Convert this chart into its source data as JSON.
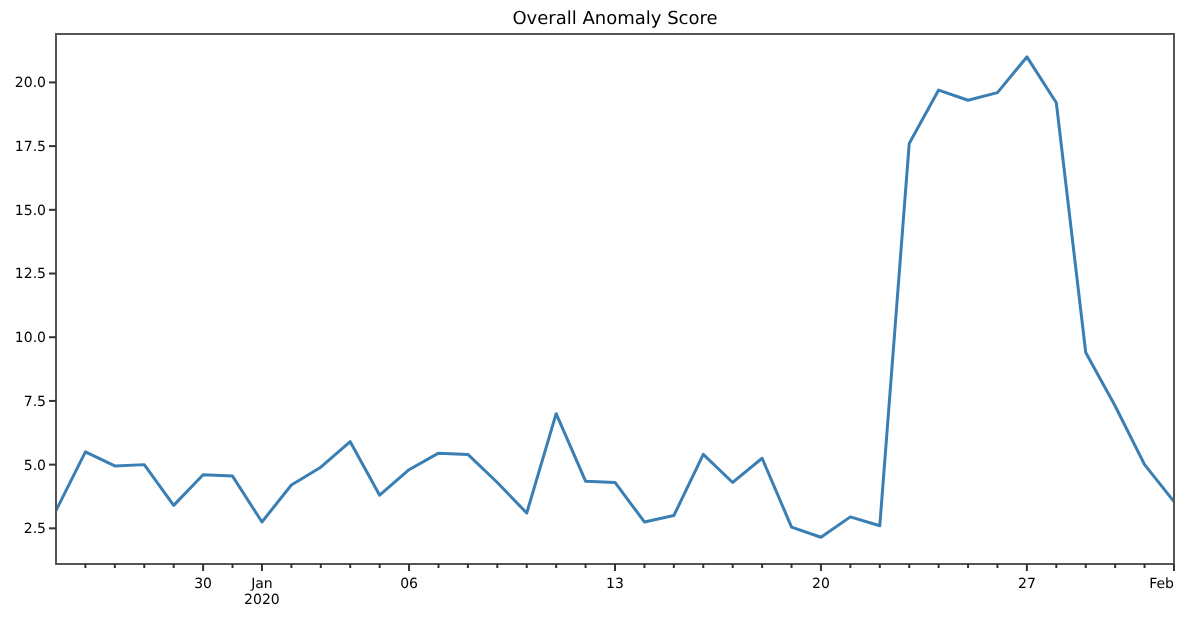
{
  "chart_data": {
    "type": "line",
    "title": "Overall Anomaly Score",
    "x": [
      "2019-12-25",
      "2019-12-26",
      "2019-12-27",
      "2019-12-28",
      "2019-12-29",
      "2019-12-30",
      "2019-12-31",
      "2020-01-01",
      "2020-01-02",
      "2020-01-03",
      "2020-01-04",
      "2020-01-05",
      "2020-01-06",
      "2020-01-07",
      "2020-01-08",
      "2020-01-09",
      "2020-01-10",
      "2020-01-11",
      "2020-01-12",
      "2020-01-13",
      "2020-01-14",
      "2020-01-15",
      "2020-01-16",
      "2020-01-17",
      "2020-01-18",
      "2020-01-19",
      "2020-01-20",
      "2020-01-21",
      "2020-01-22",
      "2020-01-23",
      "2020-01-24",
      "2020-01-25",
      "2020-01-26",
      "2020-01-27",
      "2020-01-28",
      "2020-01-29",
      "2020-01-30",
      "2020-01-31",
      "2020-02-01"
    ],
    "series": [
      {
        "color": "#3a7fb4",
        "values": [
          3.2,
          5.5,
          4.95,
          5.0,
          3.4,
          4.6,
          4.55,
          2.75,
          4.2,
          4.9,
          5.9,
          3.8,
          4.8,
          5.45,
          5.4,
          4.3,
          3.1,
          7.0,
          4.35,
          4.3,
          2.75,
          3.0,
          5.4,
          4.3,
          5.25,
          2.55,
          2.15,
          2.95,
          2.6,
          17.6,
          19.7,
          19.3,
          19.6,
          21.0,
          19.2,
          9.4,
          7.3,
          5.0,
          3.55
        ]
      }
    ],
    "xlim": [
      "2019-12-25",
      "2020-02-01"
    ],
    "xticks": [
      {
        "value": "2019-12-26",
        "label": null
      },
      {
        "value": "2019-12-27",
        "label": null
      },
      {
        "value": "2019-12-28",
        "label": null
      },
      {
        "value": "2019-12-29",
        "label": null
      },
      {
        "value": "2019-12-30",
        "label": "30"
      },
      {
        "value": "2019-12-31",
        "label": null
      },
      {
        "value": "2020-01-01",
        "label": "Jan\n2020"
      },
      {
        "value": "2020-01-02",
        "label": null
      },
      {
        "value": "2020-01-03",
        "label": null
      },
      {
        "value": "2020-01-04",
        "label": null
      },
      {
        "value": "2020-01-05",
        "label": null
      },
      {
        "value": "2020-01-06",
        "label": "06"
      },
      {
        "value": "2020-01-07",
        "label": null
      },
      {
        "value": "2020-01-08",
        "label": null
      },
      {
        "value": "2020-01-09",
        "label": null
      },
      {
        "value": "2020-01-10",
        "label": null
      },
      {
        "value": "2020-01-11",
        "label": null
      },
      {
        "value": "2020-01-12",
        "label": null
      },
      {
        "value": "2020-01-13",
        "label": "13"
      },
      {
        "value": "2020-01-14",
        "label": null
      },
      {
        "value": "2020-01-15",
        "label": null
      },
      {
        "value": "2020-01-16",
        "label": null
      },
      {
        "value": "2020-01-17",
        "label": null
      },
      {
        "value": "2020-01-18",
        "label": null
      },
      {
        "value": "2020-01-19",
        "label": null
      },
      {
        "value": "2020-01-20",
        "label": "20"
      },
      {
        "value": "2020-01-21",
        "label": null
      },
      {
        "value": "2020-01-22",
        "label": null
      },
      {
        "value": "2020-01-23",
        "label": null
      },
      {
        "value": "2020-01-24",
        "label": null
      },
      {
        "value": "2020-01-25",
        "label": null
      },
      {
        "value": "2020-01-26",
        "label": null
      },
      {
        "value": "2020-01-27",
        "label": "27"
      },
      {
        "value": "2020-01-28",
        "label": null
      },
      {
        "value": "2020-01-29",
        "label": null
      },
      {
        "value": "2020-01-30",
        "label": null
      },
      {
        "value": "2020-01-31",
        "label": null
      },
      {
        "value": "2020-02-01",
        "label": "Feb"
      }
    ],
    "ylim": [
      1.1,
      21.9
    ],
    "yticks": [
      {
        "value": 2.5,
        "label": "2.5"
      },
      {
        "value": 5,
        "label": "5.0"
      },
      {
        "value": 7.5,
        "label": "7.5"
      },
      {
        "value": 10,
        "label": "10.0"
      },
      {
        "value": 12.5,
        "label": "12.5"
      },
      {
        "value": 15,
        "label": "15.0"
      },
      {
        "value": 17.5,
        "label": "17.5"
      },
      {
        "value": 20,
        "label": "20.0"
      }
    ],
    "grid": false,
    "marker": "none",
    "line_style": "solid"
  }
}
